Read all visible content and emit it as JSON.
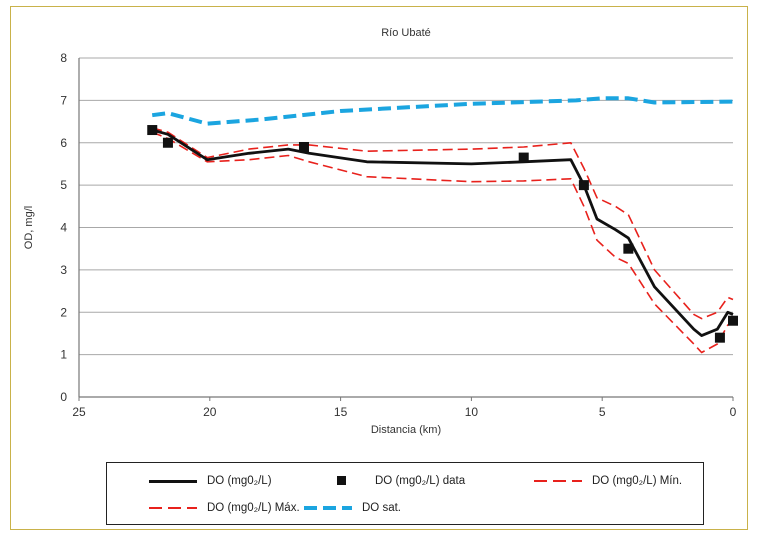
{
  "chart_data": {
    "type": "line",
    "title": "Río Ubaté",
    "xlabel": "Distancia (km)",
    "ylabel": "OD, mg/l",
    "xlim": [
      25,
      0
    ],
    "ylim": [
      0,
      8
    ],
    "x_reversed": true,
    "x_ticks": [
      "25",
      "20",
      "15",
      "10",
      "5",
      "0"
    ],
    "y_ticks": [
      "0",
      "1",
      "2",
      "3",
      "4",
      "5",
      "6",
      "7",
      "8"
    ],
    "grid": "horizontal",
    "legend_position": "bottom",
    "colors": {
      "model": "#111111",
      "data": "#111111",
      "min": "#e8211c",
      "max": "#e8211c",
      "sat": "#1ba5e0"
    },
    "series": [
      {
        "name": "DO (mg0₂/L)",
        "style": "solid",
        "x": [
          22.2,
          21.6,
          20.1,
          18.5,
          17.0,
          16.2,
          14.0,
          10.0,
          8.0,
          6.2,
          5.7,
          5.2,
          4.5,
          4.0,
          3.0,
          1.5,
          1.2,
          0.6,
          0.2,
          0.0
        ],
        "y": [
          6.3,
          6.2,
          5.6,
          5.75,
          5.85,
          5.75,
          5.55,
          5.5,
          5.55,
          5.6,
          5.0,
          4.2,
          3.95,
          3.75,
          2.6,
          1.6,
          1.45,
          1.6,
          2.0,
          1.95
        ]
      },
      {
        "name": "DO (mg0₂/L) data",
        "style": "markers",
        "x": [
          22.2,
          21.6,
          16.4,
          8.0,
          5.7,
          4.0,
          0.5,
          0.0
        ],
        "y": [
          6.3,
          6.0,
          5.9,
          5.65,
          5.0,
          3.5,
          1.4,
          1.8
        ]
      },
      {
        "name": "DO (mg0₂/L) Mín.",
        "style": "dashed",
        "x": [
          22.2,
          21.6,
          20.1,
          18.5,
          17.0,
          16.2,
          14.0,
          10.0,
          8.0,
          6.2,
          5.7,
          5.2,
          4.5,
          4.0,
          3.0,
          1.5,
          1.2,
          0.6,
          0.2,
          0.0
        ],
        "y": [
          6.25,
          6.1,
          5.55,
          5.6,
          5.7,
          5.55,
          5.2,
          5.08,
          5.1,
          5.15,
          4.5,
          3.7,
          3.3,
          3.15,
          2.2,
          1.25,
          1.05,
          1.25,
          1.7,
          1.75
        ]
      },
      {
        "name": "DO (mg0₂/L) Máx.",
        "style": "dashed",
        "x": [
          22.2,
          21.6,
          20.1,
          18.5,
          17.0,
          16.2,
          14.0,
          10.0,
          8.0,
          6.2,
          5.7,
          5.2,
          4.5,
          4.0,
          3.0,
          1.5,
          1.2,
          0.6,
          0.2,
          0.0
        ],
        "y": [
          6.35,
          6.25,
          5.65,
          5.85,
          5.95,
          5.95,
          5.8,
          5.85,
          5.9,
          6.0,
          5.4,
          4.7,
          4.5,
          4.3,
          3.0,
          1.95,
          1.85,
          2.0,
          2.35,
          2.3
        ]
      },
      {
        "name": "DO sat.",
        "style": "dashed",
        "x": [
          22.2,
          21.6,
          20.1,
          18.0,
          15.0,
          10.0,
          6.0,
          5.0,
          4.0,
          3.0,
          0.0
        ],
        "y": [
          6.65,
          6.7,
          6.45,
          6.55,
          6.75,
          6.92,
          7.0,
          7.05,
          7.05,
          6.95,
          6.97
        ]
      }
    ]
  }
}
